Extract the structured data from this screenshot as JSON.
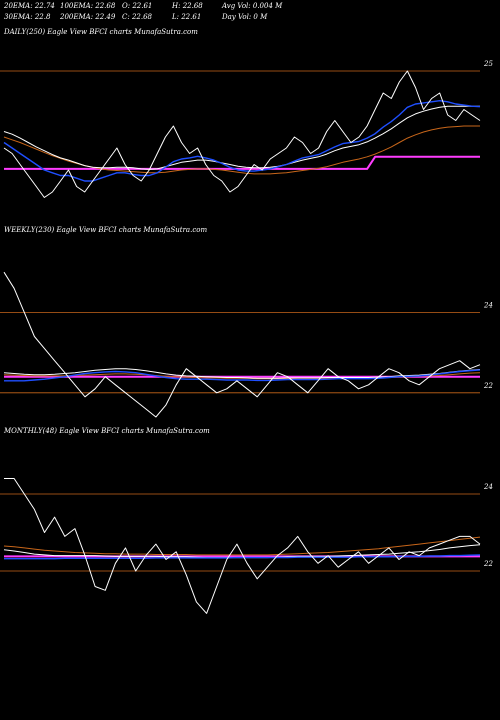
{
  "header": {
    "row1": [
      "20EMA: 22.74",
      "100EMA: 22.68",
      "O: 22.61",
      "H: 22.68",
      "Avg Vol: 0.004 M"
    ],
    "row2": [
      "30EMA: 22.8",
      "200EMA: 22.49",
      "C: 22.68",
      "L: 22.61",
      "Day Vol: 0  M"
    ]
  },
  "panels": {
    "daily": {
      "title": "DAILY(250) Eagle   View  BFCI charts MunafaSutra.com"
    },
    "weekly": {
      "title": "WEEKLY(230) Eagle  View  BFCI charts MunafaSutra.com"
    },
    "monthly": {
      "title": "MONTHLY(48) Eagle   View  BFCI charts MunafaSutra.com"
    }
  },
  "chart_data": [
    {
      "type": "line",
      "title": "DAILY(250) Eagle   View  BFCI charts MunafaSutra.com",
      "ylim": [
        22.2,
        25.6
      ],
      "yticks": [
        {
          "value": 25,
          "label": "25"
        }
      ],
      "reference_lines": [
        {
          "value": 25.0,
          "color": "#c8661a"
        }
      ],
      "series": [
        {
          "role": "price",
          "color": "#ffffff",
          "values": [
            23.6,
            23.5,
            23.3,
            23.1,
            22.9,
            22.7,
            22.8,
            23.0,
            23.2,
            22.9,
            22.8,
            23.0,
            23.2,
            23.4,
            23.6,
            23.3,
            23.1,
            23.0,
            23.2,
            23.5,
            23.8,
            24.0,
            23.7,
            23.5,
            23.6,
            23.3,
            23.1,
            23.0,
            22.8,
            22.9,
            23.1,
            23.3,
            23.2,
            23.4,
            23.5,
            23.6,
            23.8,
            23.7,
            23.5,
            23.6,
            23.9,
            24.1,
            23.9,
            23.7,
            23.8,
            24.0,
            24.3,
            24.6,
            24.5,
            24.8,
            25.0,
            24.7,
            24.3,
            24.5,
            24.6,
            24.2,
            24.1,
            24.3,
            24.2,
            24.1
          ]
        },
        {
          "role": "ema-fast",
          "color": "#1f4fff",
          "values": [
            23.7,
            23.6,
            23.5,
            23.4,
            23.3,
            23.2,
            23.15,
            23.1,
            23.1,
            23.05,
            23.0,
            23.0,
            23.05,
            23.1,
            23.15,
            23.15,
            23.12,
            23.1,
            23.1,
            23.15,
            23.25,
            23.35,
            23.4,
            23.42,
            23.45,
            23.42,
            23.38,
            23.32,
            23.25,
            23.2,
            23.18,
            23.18,
            23.2,
            23.22,
            23.26,
            23.3,
            23.36,
            23.42,
            23.45,
            23.48,
            23.55,
            23.62,
            23.68,
            23.7,
            23.72,
            23.78,
            23.86,
            23.98,
            24.08,
            24.2,
            24.34,
            24.4,
            24.42,
            24.44,
            24.46,
            24.44,
            24.4,
            24.38,
            24.36,
            24.35
          ]
        },
        {
          "role": "ema-mid",
          "color": "#ffffff",
          "values": [
            23.9,
            23.85,
            23.78,
            23.7,
            23.62,
            23.55,
            23.48,
            23.42,
            23.38,
            23.33,
            23.28,
            23.25,
            23.24,
            23.24,
            23.25,
            23.25,
            23.24,
            23.22,
            23.21,
            23.22,
            23.26,
            23.3,
            23.34,
            23.36,
            23.38,
            23.38,
            23.36,
            23.33,
            23.3,
            23.27,
            23.25,
            23.24,
            23.24,
            23.25,
            23.27,
            23.3,
            23.34,
            23.38,
            23.41,
            23.44,
            23.49,
            23.55,
            23.6,
            23.63,
            23.66,
            23.71,
            23.78,
            23.86,
            23.95,
            24.05,
            24.15,
            24.22,
            24.27,
            24.31,
            24.34,
            24.36,
            24.36,
            24.36,
            24.36,
            24.36
          ]
        },
        {
          "role": "ema-slow",
          "color": "#c8661a",
          "values": [
            23.8,
            23.75,
            23.7,
            23.64,
            23.58,
            23.52,
            23.46,
            23.41,
            23.36,
            23.32,
            23.28,
            23.25,
            23.22,
            23.2,
            23.19,
            23.18,
            23.17,
            23.16,
            23.15,
            23.15,
            23.16,
            23.18,
            23.2,
            23.21,
            23.22,
            23.22,
            23.21,
            23.2,
            23.18,
            23.16,
            23.14,
            23.13,
            23.13,
            23.13,
            23.14,
            23.15,
            23.17,
            23.19,
            23.21,
            23.23,
            23.26,
            23.3,
            23.34,
            23.37,
            23.4,
            23.44,
            23.49,
            23.55,
            23.62,
            23.7,
            23.78,
            23.84,
            23.89,
            23.93,
            23.96,
            23.98,
            23.99,
            24.0,
            24.0,
            24.0
          ]
        },
        {
          "role": "support",
          "color": "#ff3cff",
          "values": [
            23.22,
            23.22,
            23.22,
            23.22,
            23.22,
            23.22,
            23.22,
            23.22,
            23.22,
            23.22,
            23.22,
            23.22,
            23.22,
            23.22,
            23.22,
            23.22,
            23.22,
            23.22,
            23.22,
            23.22,
            23.22,
            23.22,
            23.22,
            23.22,
            23.22,
            23.22,
            23.22,
            23.22,
            23.22,
            23.22,
            23.22,
            23.22,
            23.22,
            23.22,
            23.22,
            23.22,
            23.22,
            23.22,
            23.22,
            23.22,
            23.22,
            23.22,
            23.22,
            23.22,
            23.22,
            23.22,
            23.44,
            23.44,
            23.44,
            23.44,
            23.44,
            23.44,
            23.44,
            23.44,
            23.44,
            23.44,
            23.44,
            23.44,
            23.44,
            23.44
          ]
        }
      ]
    },
    {
      "type": "line",
      "title": "WEEKLY(230) Eagle  View  BFCI charts MunafaSutra.com",
      "ylim": [
        21.2,
        25.8
      ],
      "yticks": [
        {
          "value": 24,
          "label": "24"
        },
        {
          "value": 22,
          "label": "22"
        }
      ],
      "reference_lines": [
        {
          "value": 24.0,
          "color": "#c8661a"
        },
        {
          "value": 22.0,
          "color": "#c8661a"
        }
      ],
      "series": [
        {
          "role": "price",
          "color": "#ffffff",
          "values": [
            25.0,
            24.6,
            24.0,
            23.4,
            23.1,
            22.8,
            22.5,
            22.2,
            21.9,
            22.1,
            22.4,
            22.2,
            22.0,
            21.8,
            21.6,
            21.4,
            21.7,
            22.2,
            22.6,
            22.4,
            22.2,
            22.0,
            22.1,
            22.3,
            22.1,
            21.9,
            22.2,
            22.5,
            22.4,
            22.2,
            22.0,
            22.3,
            22.6,
            22.4,
            22.3,
            22.1,
            22.2,
            22.4,
            22.6,
            22.5,
            22.3,
            22.2,
            22.4,
            22.6,
            22.7,
            22.8,
            22.6,
            22.7
          ]
        },
        {
          "role": "ema-fast",
          "color": "#1f4fff",
          "values": [
            22.3,
            22.3,
            22.3,
            22.32,
            22.34,
            22.37,
            22.4,
            22.44,
            22.48,
            22.5,
            22.52,
            22.53,
            22.52,
            22.5,
            22.46,
            22.42,
            22.38,
            22.35,
            22.34,
            22.34,
            22.34,
            22.33,
            22.32,
            22.32,
            22.32,
            22.31,
            22.31,
            22.32,
            22.33,
            22.33,
            22.33,
            22.33,
            22.34,
            22.35,
            22.35,
            22.35,
            22.35,
            22.36,
            22.38,
            22.4,
            22.41,
            22.42,
            22.44,
            22.47,
            22.5,
            22.53,
            22.55,
            22.57
          ]
        },
        {
          "role": "ema-mid",
          "color": "#ffffff",
          "values": [
            22.5,
            22.48,
            22.46,
            22.45,
            22.45,
            22.46,
            22.48,
            22.5,
            22.53,
            22.56,
            22.58,
            22.6,
            22.6,
            22.58,
            22.55,
            22.51,
            22.47,
            22.44,
            22.42,
            22.41,
            22.4,
            22.39,
            22.38,
            22.38,
            22.37,
            22.36,
            22.36,
            22.36,
            22.37,
            22.37,
            22.37,
            22.37,
            22.38,
            22.38,
            22.38,
            22.38,
            22.38,
            22.39,
            22.4,
            22.42,
            22.43,
            22.44,
            22.46,
            22.48,
            22.51,
            22.54,
            22.56,
            22.58
          ]
        },
        {
          "role": "ema-slow",
          "color": "#c8661a",
          "values": [
            22.45,
            22.44,
            22.43,
            22.42,
            22.42,
            22.42,
            22.42,
            22.43,
            22.44,
            22.45,
            22.46,
            22.47,
            22.47,
            22.46,
            22.45,
            22.43,
            22.41,
            22.4,
            22.39,
            22.38,
            22.37,
            22.37,
            22.36,
            22.36,
            22.36,
            22.35,
            22.35,
            22.35,
            22.35,
            22.36,
            22.36,
            22.36,
            22.36,
            22.37,
            22.37,
            22.37,
            22.37,
            22.38,
            22.38,
            22.39,
            22.4,
            22.41,
            22.42,
            22.43,
            22.45,
            22.47,
            22.49,
            22.5
          ]
        },
        {
          "role": "support",
          "color": "#ff3cff",
          "values": [
            22.4,
            22.4,
            22.4,
            22.4,
            22.4,
            22.4,
            22.4,
            22.4,
            22.4,
            22.4,
            22.4,
            22.4,
            22.4,
            22.4,
            22.4,
            22.4,
            22.4,
            22.4,
            22.4,
            22.4,
            22.4,
            22.4,
            22.4,
            22.4,
            22.4,
            22.4,
            22.4,
            22.4,
            22.4,
            22.4,
            22.4,
            22.4,
            22.4,
            22.4,
            22.4,
            22.4,
            22.4,
            22.4,
            22.4,
            22.4,
            22.4,
            22.4,
            22.4,
            22.4,
            22.4,
            22.4,
            22.4,
            22.4
          ]
        }
      ]
    },
    {
      "type": "line",
      "title": "MONTHLY(48) Eagle   View  BFCI charts MunafaSutra.com",
      "ylim": [
        20.6,
        25.4
      ],
      "yticks": [
        {
          "value": 24,
          "label": "24"
        },
        {
          "value": 22,
          "label": "22"
        }
      ],
      "reference_lines": [
        {
          "value": 24.0,
          "color": "#c8661a"
        },
        {
          "value": 22.0,
          "color": "#c8661a"
        }
      ],
      "series": [
        {
          "role": "price",
          "color": "#ffffff",
          "values": [
            24.4,
            24.4,
            24.0,
            23.6,
            23.0,
            23.4,
            22.9,
            23.1,
            22.4,
            21.6,
            21.5,
            22.2,
            22.6,
            22.0,
            22.4,
            22.7,
            22.3,
            22.5,
            21.9,
            21.2,
            20.9,
            21.6,
            22.3,
            22.7,
            22.2,
            21.8,
            22.1,
            22.4,
            22.6,
            22.9,
            22.5,
            22.2,
            22.4,
            22.1,
            22.3,
            22.5,
            22.2,
            22.4,
            22.6,
            22.3,
            22.5,
            22.4,
            22.6,
            22.7,
            22.8,
            22.9,
            22.9,
            22.7
          ]
        },
        {
          "role": "ema-fast",
          "color": "#1f4fff",
          "values": [
            22.32,
            22.32,
            22.32,
            22.32,
            22.32,
            22.32,
            22.33,
            22.33,
            22.33,
            22.33,
            22.33,
            22.33,
            22.33,
            22.33,
            22.33,
            22.34,
            22.34,
            22.34,
            22.34,
            22.34,
            22.34,
            22.34,
            22.34,
            22.35,
            22.35,
            22.35,
            22.35,
            22.35,
            22.35,
            22.36,
            22.36,
            22.36,
            22.36,
            22.36,
            22.36,
            22.37,
            22.37,
            22.37,
            22.37,
            22.38,
            22.38,
            22.38,
            22.39,
            22.39,
            22.4,
            22.4,
            22.41,
            22.42
          ]
        },
        {
          "role": "ema-mid",
          "color": "#ffffff",
          "values": [
            22.55,
            22.52,
            22.48,
            22.44,
            22.42,
            22.4,
            22.4,
            22.4,
            22.4,
            22.4,
            22.39,
            22.38,
            22.38,
            22.38,
            22.38,
            22.38,
            22.37,
            22.37,
            22.37,
            22.36,
            22.35,
            22.35,
            22.35,
            22.35,
            22.35,
            22.35,
            22.35,
            22.36,
            22.37,
            22.38,
            22.38,
            22.38,
            22.38,
            22.39,
            22.4,
            22.41,
            22.42,
            22.43,
            22.44,
            22.46,
            22.48,
            22.5,
            22.53,
            22.56,
            22.6,
            22.63,
            22.66,
            22.68
          ]
        },
        {
          "role": "ema-slow",
          "color": "#c8661a",
          "values": [
            22.65,
            22.63,
            22.6,
            22.57,
            22.54,
            22.52,
            22.5,
            22.48,
            22.47,
            22.46,
            22.45,
            22.45,
            22.44,
            22.44,
            22.44,
            22.43,
            22.43,
            22.43,
            22.43,
            22.42,
            22.42,
            22.42,
            22.42,
            22.42,
            22.42,
            22.42,
            22.42,
            22.43,
            22.44,
            22.45,
            22.46,
            22.47,
            22.48,
            22.5,
            22.52,
            22.54,
            22.56,
            22.58,
            22.61,
            22.64,
            22.67,
            22.7,
            22.73,
            22.76,
            22.79,
            22.82,
            22.85,
            22.88
          ]
        },
        {
          "role": "support",
          "color": "#ff3cff",
          "values": [
            22.38,
            22.38,
            22.38,
            22.38,
            22.38,
            22.38,
            22.38,
            22.38,
            22.38,
            22.38,
            22.38,
            22.38,
            22.38,
            22.38,
            22.38,
            22.38,
            22.38,
            22.38,
            22.38,
            22.38,
            22.38,
            22.38,
            22.38,
            22.38,
            22.38,
            22.38,
            22.38,
            22.38,
            22.38,
            22.38,
            22.38,
            22.38,
            22.38,
            22.38,
            22.38,
            22.38,
            22.38,
            22.38,
            22.38,
            22.38,
            22.38,
            22.38,
            22.38,
            22.38,
            22.38,
            22.38,
            22.38,
            22.38
          ]
        }
      ]
    }
  ]
}
